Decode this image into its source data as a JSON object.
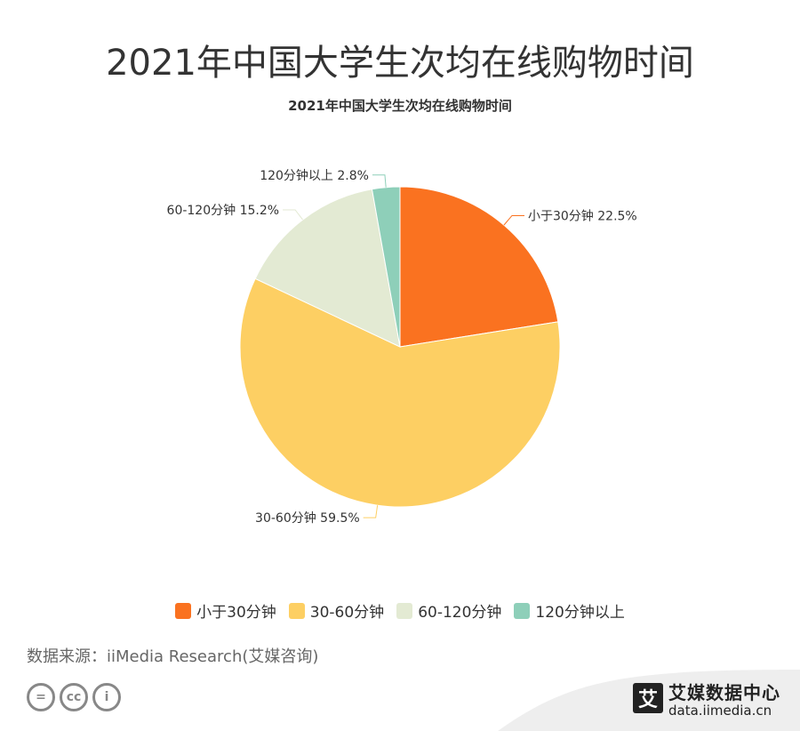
{
  "header": {
    "main_title": "2021年中国大学生次均在线购物时间",
    "chart_title": "2021年中国大学生次均在线购物时间"
  },
  "chart_data": {
    "type": "pie",
    "title": "2021年中国大学生次均在线购物时间",
    "slices": [
      {
        "name": "小于30分钟",
        "value": 22.5,
        "label": "小于30分钟 22.5%",
        "color": "#fa7220"
      },
      {
        "name": "30-60分钟",
        "value": 59.5,
        "label": "30-60分钟 59.5%",
        "color": "#fdcf63"
      },
      {
        "name": "60-120分钟",
        "value": 15.2,
        "label": "60-120分钟 15.2%",
        "color": "#e3ead3"
      },
      {
        "name": "120分钟以上",
        "value": 2.8,
        "label": "120分钟以上 2.8%",
        "color": "#8ecfb9"
      }
    ],
    "legend_position": "bottom"
  },
  "footer": {
    "source": "数据来源：iiMedia Research(艾媒咨询)",
    "cc_badges": [
      "=",
      "cc",
      "i"
    ],
    "brand_logo": "艾",
    "brand_name": "艾媒数据中心",
    "brand_url": "data.iimedia.cn"
  }
}
